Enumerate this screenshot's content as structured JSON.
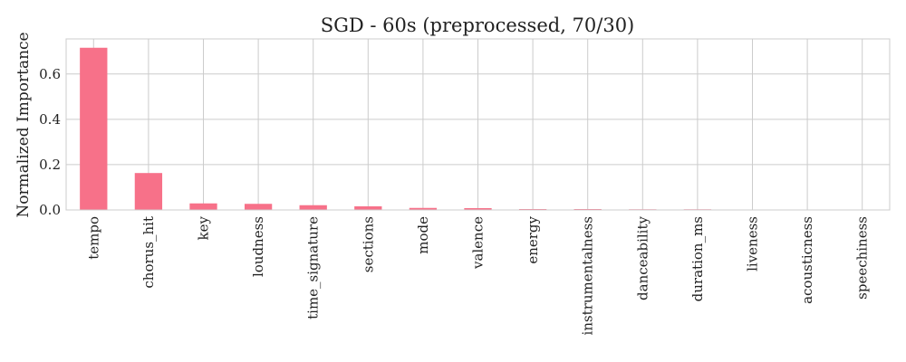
{
  "chart_data": {
    "type": "bar",
    "title": "SGD - 60s (preprocessed, 70/30)",
    "xlabel": "",
    "ylabel": "Normalized Importance",
    "categories": [
      "tempo",
      "chorus_hit",
      "key",
      "loudness",
      "time_signature",
      "sections",
      "mode",
      "valence",
      "energy",
      "instrumentalness",
      "danceability",
      "duration_ms",
      "liveness",
      "acousticness",
      "speechiness"
    ],
    "values": [
      0.716,
      0.163,
      0.029,
      0.027,
      0.021,
      0.016,
      0.009,
      0.008,
      0.004,
      0.004,
      0.003,
      0.003,
      0.0,
      0.0,
      0.0
    ],
    "ylim": [
      0,
      0.755
    ],
    "yticks": [
      0.0,
      0.2,
      0.4,
      0.6
    ],
    "ytick_labels": [
      "0.0",
      "0.2",
      "0.4",
      "0.6"
    ],
    "grid": true,
    "bar_color": "#f77189"
  }
}
